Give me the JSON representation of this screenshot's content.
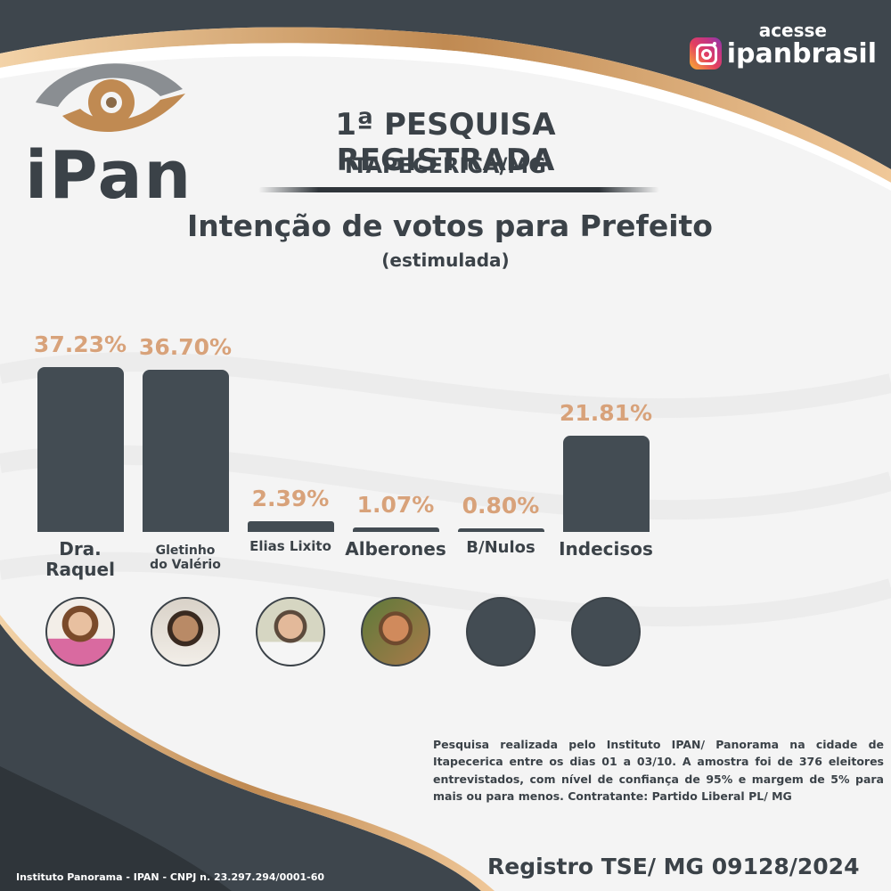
{
  "brand": {
    "logo_text": "iPan",
    "instagram_prompt": "acesse",
    "instagram_handle": "ipanbrasil"
  },
  "header": {
    "title": "1ª PESQUISA REGISTRADA",
    "location": "ITAPECERICA/MG",
    "heading": "Intenção de votos para Prefeito",
    "subheading": "(estimulada)"
  },
  "colors": {
    "bar": "#434c53",
    "value_label": "#d8a27a",
    "accent_gold": "#c08a52",
    "dark": "#3b4248"
  },
  "chart_data": {
    "type": "bar",
    "title": "Intenção de votos para Prefeito",
    "subtitle": "(estimulada)",
    "categories": [
      "Dra. Raquel",
      "Gletinho do Valério",
      "Elias Lixito",
      "Alberones",
      "B/Nulos",
      "Indecisos"
    ],
    "values": [
      37.23,
      36.7,
      2.39,
      1.07,
      0.8,
      21.81
    ],
    "value_labels": [
      "37.23%",
      "36.70%",
      "2.39%",
      "1.07%",
      "0.80%",
      "21.81%"
    ],
    "unit": "%",
    "ylim": [
      0,
      37.23
    ],
    "grid": false,
    "legend": "none"
  },
  "candidates": [
    {
      "label_lines": [
        "Dra. Raquel"
      ],
      "avatar": "photo-woman"
    },
    {
      "label_lines": [
        "Gletinho",
        "do Valério"
      ],
      "avatar": "photo-man-beard"
    },
    {
      "label_lines": [
        "Elias Lixito"
      ],
      "avatar": "photo-man-glasses"
    },
    {
      "label_lines": [
        "Alberones"
      ],
      "avatar": "photo-man-outdoor"
    },
    {
      "label_lines": [
        "B/Nulos"
      ],
      "avatar": "blank-circle"
    },
    {
      "label_lines": [
        "Indecisos"
      ],
      "avatar": "blank-circle"
    }
  ],
  "footer": {
    "methodology": "Pesquisa realizada pelo Instituto IPAN/ Panorama  na cidade de Itapecerica entre os dias  01 a 03/10. A amostra foi de 376 eleitores entrevistados, com nível de confiança de 95% e margem de 5% para mais ou para menos.  Contratante: Partido Liberal PL/ MG",
    "registration": "Registro TSE/ MG 09128/2024",
    "institute": "Instituto Panorama - IPAN - CNPJ n. 23.297.294/0001-60"
  }
}
